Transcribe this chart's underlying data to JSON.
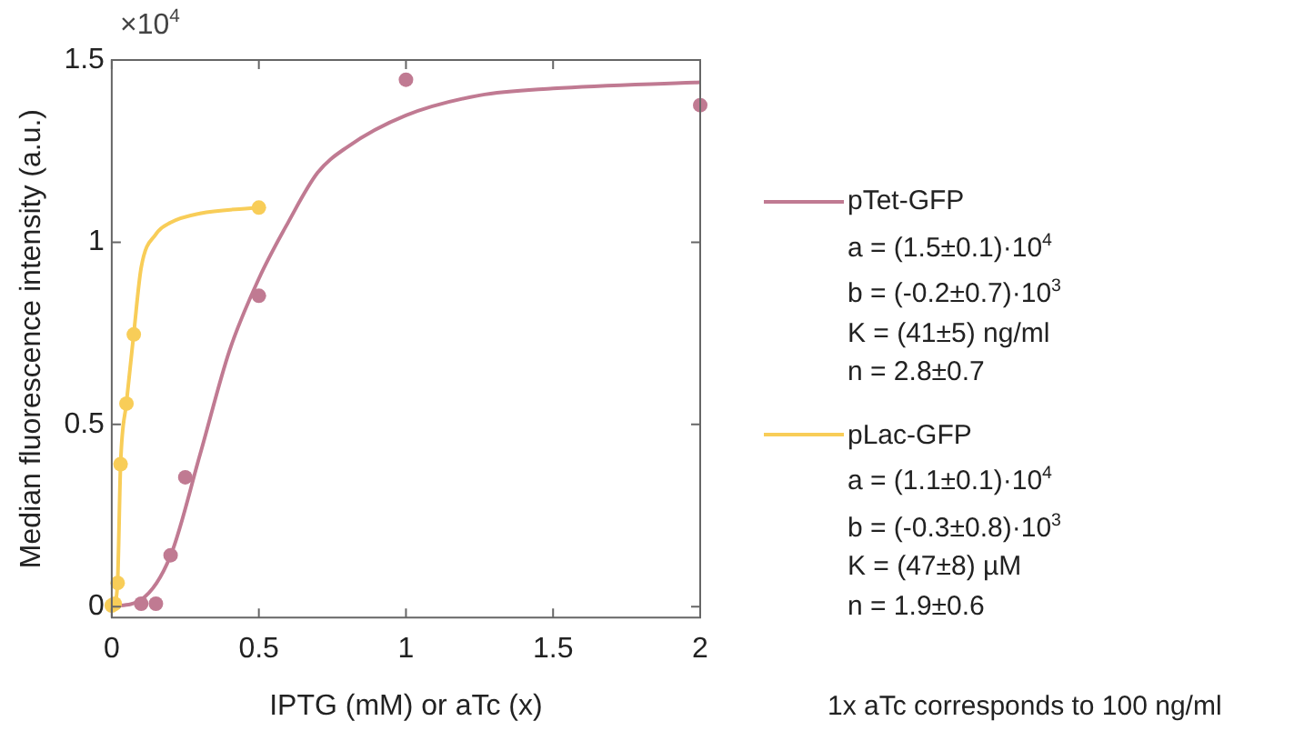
{
  "chart_data": {
    "type": "scatter",
    "xlabel": "IPTG (mM) or aTc (x)",
    "ylabel": "Median fluorescence intensity (a.u.)",
    "xlim": [
      0,
      2
    ],
    "xticks": [
      0,
      0.5,
      1,
      1.5,
      2
    ],
    "ylim": [
      -0.03,
      1.5
    ],
    "yticks": [
      0,
      0.5,
      1,
      1.5
    ],
    "grid": false,
    "legend": "right",
    "series": [
      {
        "name": "pTet-GFP",
        "type": "line",
        "color": "#c07a92",
        "x": [
          0,
          0.1,
          0.2,
          0.3,
          0.4,
          0.5,
          0.6,
          0.7,
          0.8,
          1,
          1.25,
          1.5,
          2
        ],
        "values": [
          0,
          0.019,
          0.14,
          0.417,
          0.702,
          0.9,
          1.055,
          1.191,
          1.261,
          1.348,
          1.403,
          1.422,
          1.439
        ]
      },
      {
        "type": "scatter",
        "color": "#c07a92",
        "x": [
          0.1,
          0.15,
          0.2,
          0.25,
          0.5,
          1,
          2
        ],
        "values": [
          0.008,
          0.008,
          0.141,
          0.355,
          0.853,
          1.446,
          1.376
        ]
      },
      {
        "name": "pLac-GFP",
        "type": "line",
        "color": "#f8cd58",
        "x": [
          0,
          0.01,
          0.02,
          0.03,
          0.05,
          0.075,
          0.1,
          0.15,
          0.2,
          0.3,
          0.5
        ],
        "values": [
          0,
          0.01,
          0.07,
          0.39,
          0.56,
          0.75,
          0.93,
          1.022,
          1.054,
          1.079,
          1.095
        ]
      },
      {
        "type": "scatter",
        "color": "#f8cd58",
        "x": [
          0,
          0.01,
          0.02,
          0.03,
          0.05,
          0.075,
          0.5
        ],
        "values": [
          0.003,
          0.008,
          0.065,
          0.391,
          0.557,
          0.747,
          1.095
        ]
      }
    ],
    "annotations": [
      "×10$^{4}$",
      "a = (1.5±0.1)·10$^{4}$",
      "b = (-0.2±0.7)·10$^{3}$",
      "K = (41±5) ng/ml",
      "n = 2.8±0.7",
      "a = (1.1±0.1)·10$^{4}$",
      "b = (-0.3±0.8)·10$^{3}$",
      "K = (47±8) µM",
      "n = 1.9±0.6",
      "1x aTc corresponds to 100 ng/ml"
    ]
  }
}
